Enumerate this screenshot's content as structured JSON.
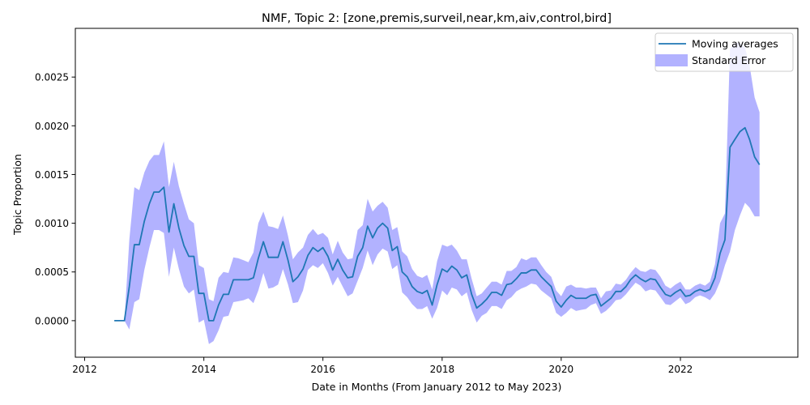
{
  "chart_data": {
    "type": "line",
    "title": "NMF, Topic 2: [zone,premis,surveil,near,km,aiv,control,bird]",
    "xlabel": "Date in Months (From January 2012 to May 2023)",
    "ylabel": "Topic Proportion",
    "xlim": [
      "2011-11-05",
      "2023-12-22"
    ],
    "ylim": [
      -0.000375,
      0.003
    ],
    "ylog": false,
    "grid": false,
    "x_ticks": [
      "2012",
      "2014",
      "2016",
      "2018",
      "2020",
      "2022"
    ],
    "y_ticks": [
      "0.0000",
      "0.0005",
      "0.0010",
      "0.0015",
      "0.0020",
      "0.0025"
    ],
    "legend": {
      "position": "top-right",
      "entries": [
        "Moving averages",
        "Standard Error"
      ]
    },
    "colors": {
      "line": "#1f77b4",
      "band": "#aaaaff"
    },
    "x": [
      "2012-07",
      "2012-08",
      "2012-09",
      "2012-10",
      "2012-11",
      "2012-12",
      "2013-01",
      "2013-02",
      "2013-03",
      "2013-04",
      "2013-05",
      "2013-06",
      "2013-07",
      "2013-08",
      "2013-09",
      "2013-10",
      "2013-11",
      "2013-12",
      "2014-01",
      "2014-02",
      "2014-03",
      "2014-04",
      "2014-05",
      "2014-06",
      "2014-07",
      "2014-08",
      "2014-09",
      "2014-10",
      "2014-11",
      "2014-12",
      "2015-01",
      "2015-02",
      "2015-03",
      "2015-04",
      "2015-05",
      "2015-06",
      "2015-07",
      "2015-08",
      "2015-09",
      "2015-10",
      "2015-11",
      "2015-12",
      "2016-01",
      "2016-02",
      "2016-03",
      "2016-04",
      "2016-05",
      "2016-06",
      "2016-07",
      "2016-08",
      "2016-09",
      "2016-10",
      "2016-11",
      "2016-12",
      "2017-01",
      "2017-02",
      "2017-03",
      "2017-04",
      "2017-05",
      "2017-06",
      "2017-07",
      "2017-08",
      "2017-09",
      "2017-10",
      "2017-11",
      "2017-12",
      "2018-01",
      "2018-02",
      "2018-03",
      "2018-04",
      "2018-05",
      "2018-06",
      "2018-07",
      "2018-08",
      "2018-09",
      "2018-10",
      "2018-11",
      "2018-12",
      "2019-01",
      "2019-02",
      "2019-03",
      "2019-04",
      "2019-05",
      "2019-06",
      "2019-07",
      "2019-08",
      "2019-09",
      "2019-10",
      "2019-11",
      "2019-12",
      "2020-01",
      "2020-02",
      "2020-03",
      "2020-04",
      "2020-05",
      "2020-06",
      "2020-07",
      "2020-08",
      "2020-09",
      "2020-10",
      "2020-11",
      "2020-12",
      "2021-01",
      "2021-02",
      "2021-03",
      "2021-04",
      "2021-05",
      "2021-06",
      "2021-07",
      "2021-08",
      "2021-09",
      "2021-10",
      "2021-11",
      "2021-12",
      "2022-01",
      "2022-02",
      "2022-03",
      "2022-04",
      "2022-05",
      "2022-06",
      "2022-07",
      "2022-08",
      "2022-09",
      "2022-10",
      "2022-11",
      "2022-12",
      "2023-01",
      "2023-02",
      "2023-03",
      "2023-04",
      "2023-05"
    ],
    "series": [
      {
        "name": "Moving averages",
        "values": [
          0,
          0,
          0,
          0.00035,
          0.00078,
          0.00078,
          0.00102,
          0.0012,
          0.00132,
          0.00132,
          0.00137,
          0.00091,
          0.0012,
          0.00095,
          0.00077,
          0.00066,
          0.00066,
          0.00028,
          0.00028,
          0,
          0,
          0.00016,
          0.00027,
          0.00027,
          0.00042,
          0.00042,
          0.00042,
          0.00042,
          0.00044,
          0.00064,
          0.00081,
          0.00065,
          0.00065,
          0.00065,
          0.00081,
          0.00062,
          0.0004,
          0.00045,
          0.00053,
          0.00067,
          0.00075,
          0.00071,
          0.00075,
          0.00066,
          0.00052,
          0.00063,
          0.00052,
          0.00044,
          0.00045,
          0.00066,
          0.00075,
          0.00097,
          0.00085,
          0.00095,
          0.001,
          0.00095,
          0.00072,
          0.00076,
          0.0005,
          0.00045,
          0.00035,
          0.0003,
          0.00028,
          0.00031,
          0.00016,
          0.00037,
          0.00053,
          0.0005,
          0.00056,
          0.00052,
          0.00044,
          0.00047,
          0.00027,
          0.00013,
          0.00017,
          0.00022,
          0.00029,
          0.00029,
          0.00026,
          0.00037,
          0.00038,
          0.00043,
          0.00049,
          0.00049,
          0.00052,
          0.00052,
          0.00045,
          0.0004,
          0.00035,
          0.0002,
          0.00014,
          0.00021,
          0.00026,
          0.00023,
          0.00023,
          0.00023,
          0.00026,
          0.00027,
          0.00015,
          0.00019,
          0.00023,
          0.0003,
          0.0003,
          0.00035,
          0.00042,
          0.00047,
          0.00043,
          0.0004,
          0.00043,
          0.00042,
          0.00034,
          0.00027,
          0.00025,
          0.00029,
          0.00032,
          0.00025,
          0.00026,
          0.0003,
          0.00032,
          0.0003,
          0.00032,
          0.00044,
          0.00069,
          0.00083,
          0.00178,
          0.00186,
          0.00194,
          0.00198,
          0.00186,
          0.00168,
          0.0016
        ]
      }
    ],
    "band": {
      "name": "Standard Error",
      "lower": [
        0,
        0,
        0,
        -9e-05,
        0.00019,
        0.00022,
        0.00052,
        0.00075,
        0.00093,
        0.00093,
        0.0009,
        0.00045,
        0.00075,
        0.00053,
        0.00035,
        0.00028,
        0.00032,
        -2e-05,
        1e-05,
        -0.00024,
        -0.00021,
        -0.0001,
        4e-05,
        5e-05,
        0.00019,
        0.0002,
        0.00021,
        0.00023,
        0.00018,
        0.00031,
        0.00049,
        0.00033,
        0.00034,
        0.00037,
        0.00053,
        0.00037,
        0.00018,
        0.00019,
        0.00031,
        0.00052,
        0.00057,
        0.00054,
        0.00059,
        0.00049,
        0.00036,
        0.00045,
        0.00035,
        0.00025,
        0.00028,
        0.00041,
        0.00054,
        0.00072,
        0.00057,
        0.00068,
        0.00074,
        0.00071,
        0.00053,
        0.00057,
        0.00029,
        0.00024,
        0.00017,
        0.00012,
        0.00012,
        0.00015,
        2e-05,
        0.00013,
        0.00031,
        0.00026,
        0.00034,
        0.00032,
        0.00025,
        0.00029,
        0.00011,
        -2e-05,
        5e-05,
        8e-05,
        0.00015,
        0.00015,
        0.00012,
        0.00021,
        0.00024,
        0.0003,
        0.00033,
        0.00035,
        0.00038,
        0.00037,
        0.00031,
        0.00027,
        0.00023,
        8e-05,
        4e-05,
        8e-05,
        0.00013,
        0.0001,
        0.00011,
        0.00012,
        0.00016,
        0.00018,
        7e-05,
        0.0001,
        0.00015,
        0.00021,
        0.00022,
        0.00027,
        0.00033,
        0.00039,
        0.00036,
        0.0003,
        0.00032,
        0.00031,
        0.00024,
        0.00017,
        0.00016,
        0.0002,
        0.00024,
        0.00017,
        0.00019,
        0.00024,
        0.00026,
        0.00024,
        0.00021,
        0.00028,
        0.0004,
        0.00057,
        0.00071,
        0.00093,
        0.00108,
        0.00121,
        0.00116,
        0.00107,
        0.00107
      ],
      "upper": [
        0,
        0,
        0,
        0.00083,
        0.00137,
        0.00134,
        0.00152,
        0.00164,
        0.0017,
        0.0017,
        0.00184,
        0.00137,
        0.00163,
        0.00138,
        0.0012,
        0.00104,
        0.001,
        0.00057,
        0.00054,
        0.00022,
        0.0002,
        0.00044,
        0.0005,
        0.00049,
        0.00065,
        0.00064,
        0.00062,
        0.0006,
        0.0007,
        0.001,
        0.00112,
        0.00097,
        0.00096,
        0.00094,
        0.00108,
        0.00087,
        0.00063,
        0.0007,
        0.00075,
        0.00088,
        0.00094,
        0.00088,
        0.0009,
        0.00085,
        0.00068,
        0.00082,
        0.0007,
        0.00063,
        0.00064,
        0.00093,
        0.00098,
        0.00125,
        0.00112,
        0.00118,
        0.00122,
        0.00116,
        0.00093,
        0.00096,
        0.00071,
        0.00066,
        0.00053,
        0.00046,
        0.00044,
        0.00047,
        0.00032,
        0.00061,
        0.00078,
        0.00076,
        0.00078,
        0.00072,
        0.00063,
        0.00063,
        0.00043,
        0.00025,
        0.00028,
        0.00034,
        0.0004,
        0.0004,
        0.00037,
        0.00051,
        0.00051,
        0.00055,
        0.00064,
        0.00062,
        0.00065,
        0.00065,
        0.00057,
        0.0005,
        0.00045,
        0.00031,
        0.00025,
        0.00035,
        0.00037,
        0.00034,
        0.00034,
        0.00033,
        0.00034,
        0.00034,
        0.00023,
        0.0003,
        0.00031,
        0.00038,
        0.00037,
        0.00042,
        0.00049,
        0.00055,
        0.00051,
        0.0005,
        0.00053,
        0.00052,
        0.00045,
        0.00036,
        0.00033,
        0.00037,
        0.0004,
        0.00032,
        0.00032,
        0.00036,
        0.00038,
        0.00036,
        0.0004,
        0.00058,
        0.001,
        0.0011,
        0.00279,
        0.00285,
        0.00285,
        0.0028,
        0.00262,
        0.00229,
        0.00214
      ]
    }
  }
}
